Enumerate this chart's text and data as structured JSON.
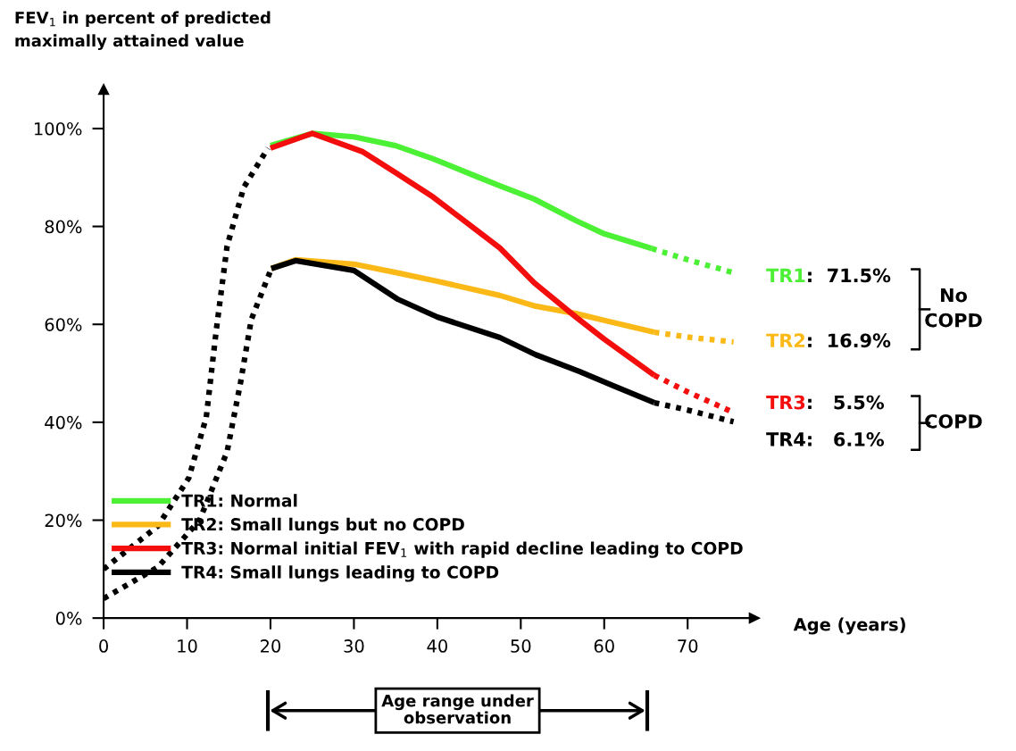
{
  "chart_data": {
    "type": "line",
    "ylabel": "FEV$_{1}$ in percent of predicted\nmaximally attained value",
    "xlabel": "Age (years)",
    "xlim": [
      0,
      78
    ],
    "ylim": [
      0,
      108
    ],
    "xticks": [
      0,
      10,
      20,
      30,
      40,
      50,
      60,
      70
    ],
    "yticks": [
      {
        "value": 0,
        "label": "0%"
      },
      {
        "value": 20,
        "label": "20%"
      },
      {
        "value": 40,
        "label": "40%"
      },
      {
        "value": 60,
        "label": "60%"
      },
      {
        "value": 80,
        "label": "80%"
      },
      {
        "value": 100,
        "label": "100%"
      }
    ],
    "legend": "bottom",
    "series": [
      {
        "name": "TR1: Normal",
        "color": "#4cf035",
        "line_style": "solid",
        "x": [
          20,
          25,
          30,
          35,
          39.5,
          45,
          47.5,
          51.6,
          56.6,
          60,
          65.7
        ],
        "values": [
          96.5,
          99,
          98.3,
          96.5,
          93.8,
          90,
          88.3,
          85.6,
          81.2,
          78.5,
          75.5
        ]
      },
      {
        "name": "TR2: Small lungs but no COPD",
        "color": "#fbb917",
        "line_style": "solid",
        "x": [
          20.1,
          23,
          30,
          35,
          40,
          47.5,
          51.8,
          56.6,
          60,
          66
        ],
        "values": [
          71.4,
          73.2,
          72.3,
          70.6,
          68.8,
          65.9,
          63.7,
          62.2,
          60.8,
          58.4
        ]
      },
      {
        "name": "TR3: Normal initial FEV$_{1}$ with rapid decline leading to COPD",
        "color": "#f40d0d",
        "line_style": "solid",
        "x": [
          20,
          25,
          31,
          35,
          39.5,
          47.5,
          51.6,
          56.6,
          60,
          66
        ],
        "values": [
          96,
          99,
          95.3,
          91,
          86,
          75.6,
          68.5,
          61.5,
          57,
          49.6
        ]
      },
      {
        "name": "TR4: Small lungs leading to COPD",
        "color": "#000000",
        "line_style": "solid",
        "x": [
          20.1,
          23,
          30,
          35.3,
          40,
          47.5,
          51.8,
          57,
          61,
          66
        ],
        "values": [
          71.4,
          73,
          71,
          65.1,
          61.5,
          57.3,
          53.8,
          50.4,
          47.5,
          44
        ]
      },
      {
        "color": "#4cf035",
        "line_style": "dotted",
        "x": [
          65.7,
          70,
          75.4
        ],
        "values": [
          75.5,
          73.2,
          70.6
        ]
      },
      {
        "color": "#fbb917",
        "line_style": "dotted",
        "x": [
          66,
          70,
          75.5
        ],
        "values": [
          58.4,
          57.4,
          56.4
        ]
      },
      {
        "color": "#f40d0d",
        "line_style": "dotted",
        "x": [
          66,
          70,
          75.5
        ],
        "values": [
          49.6,
          46.2,
          42
        ]
      },
      {
        "color": "#000000",
        "line_style": "dotted",
        "x": [
          66,
          70,
          75.5
        ],
        "values": [
          44,
          42.5,
          40.1
        ]
      },
      {
        "color": "#000000",
        "line_style": "dotted",
        "x": [
          0,
          6.5,
          10.2,
          12.3,
          13.5,
          14.8,
          16.8,
          19.7
        ],
        "values": [
          10,
          18.8,
          28.6,
          41,
          58.8,
          76,
          88,
          96
        ]
      },
      {
        "color": "#000000",
        "line_style": "dotted",
        "x": [
          0,
          6.5,
          11.5,
          14.8,
          16.4,
          17.7,
          20.1
        ],
        "values": [
          4,
          10.4,
          20,
          34,
          48,
          61,
          71.4
        ]
      }
    ],
    "annotations": [
      "TR1:  71.5%",
      "TR2:  16.9%",
      "TR3:   5.5%",
      "TR4:   6.1%",
      "No\nCOPD",
      "COPD",
      "Age range under\nobservation"
    ]
  }
}
